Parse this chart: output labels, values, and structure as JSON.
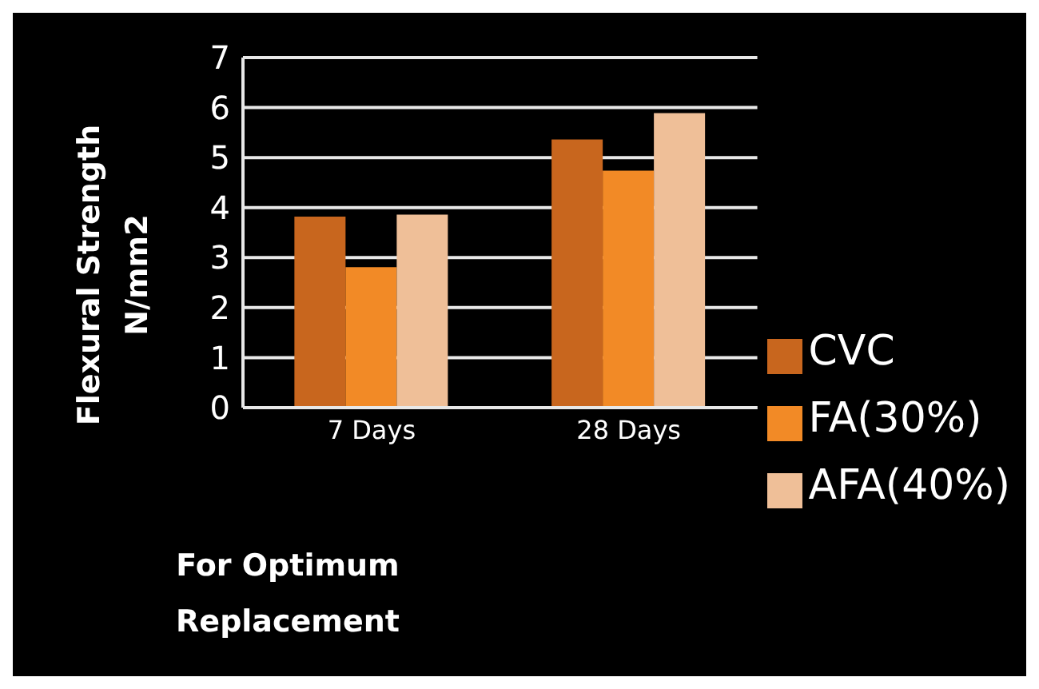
{
  "chart_data": {
    "type": "bar",
    "xlabel": "For Optimum Replacement",
    "ylabel": "Flexural  Strength N/mm2",
    "categories": [
      "7 Days",
      "28 Days"
    ],
    "series": [
      {
        "name": "CVC",
        "color": "#c8661e",
        "values": [
          3.82,
          5.36
        ]
      },
      {
        "name": "FA(30%)",
        "color": "#f28a26",
        "values": [
          2.81,
          4.74
        ]
      },
      {
        "name": "AFA(40%)",
        "color": "#efbf98",
        "values": [
          3.86,
          5.89
        ]
      }
    ],
    "ylim": [
      0,
      7
    ],
    "yticks": [
      0,
      1,
      2,
      3,
      4,
      5,
      6,
      7
    ],
    "grid": "y",
    "legend": "right"
  }
}
